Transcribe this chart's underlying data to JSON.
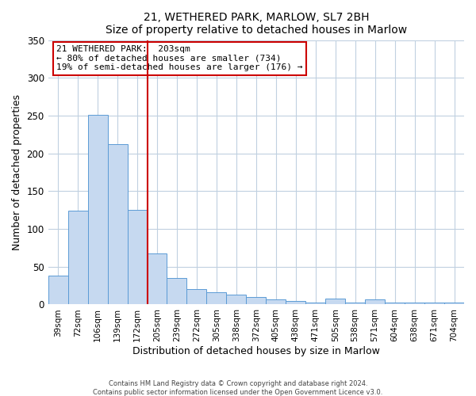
{
  "title": "21, WETHERED PARK, MARLOW, SL7 2BH",
  "subtitle": "Size of property relative to detached houses in Marlow",
  "xlabel": "Distribution of detached houses by size in Marlow",
  "ylabel": "Number of detached properties",
  "bar_labels": [
    "39sqm",
    "72sqm",
    "106sqm",
    "139sqm",
    "172sqm",
    "205sqm",
    "239sqm",
    "272sqm",
    "305sqm",
    "338sqm",
    "372sqm",
    "405sqm",
    "438sqm",
    "471sqm",
    "505sqm",
    "538sqm",
    "571sqm",
    "604sqm",
    "638sqm",
    "671sqm",
    "704sqm"
  ],
  "bar_values": [
    38,
    124,
    251,
    212,
    125,
    68,
    35,
    20,
    16,
    13,
    10,
    7,
    5,
    3,
    8,
    3,
    7,
    3,
    3,
    3,
    3
  ],
  "bar_color": "#c6d9f0",
  "bar_edge_color": "#5b9bd5",
  "vline_x": 4.5,
  "vline_color": "#cc0000",
  "annotation_title": "21 WETHERED PARK:  203sqm",
  "annotation_line1": "← 80% of detached houses are smaller (734)",
  "annotation_line2": "19% of semi-detached houses are larger (176) →",
  "annotation_box_color": "#cc0000",
  "ylim": [
    0,
    350
  ],
  "yticks": [
    0,
    50,
    100,
    150,
    200,
    250,
    300,
    350
  ],
  "footer1": "Contains HM Land Registry data © Crown copyright and database right 2024.",
  "footer2": "Contains public sector information licensed under the Open Government Licence v3.0.",
  "bg_color": "#ffffff",
  "grid_color": "#c0d0e0"
}
